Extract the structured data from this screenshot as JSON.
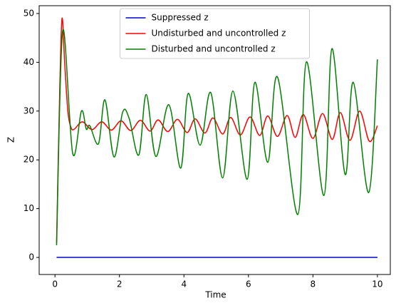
{
  "chart_data": {
    "type": "line",
    "xlabel": "Time",
    "ylabel": "Z",
    "xlim": [
      -0.49,
      10.4
    ],
    "ylim": [
      -3.5,
      51.6
    ],
    "xticks": [
      0,
      2,
      4,
      6,
      8,
      10
    ],
    "yticks": [
      0,
      10,
      20,
      30,
      40,
      50
    ],
    "legend": "upper center",
    "series": [
      {
        "name": "Suppressed z",
        "color": "#0000cc",
        "x": [
          0.05,
          10
        ],
        "values": [
          0,
          0
        ]
      },
      {
        "name": "Undisturbed and uncontrolled z",
        "color": "#ff0000",
        "x": [
          0.05,
          0.15,
          0.22,
          0.3,
          0.4,
          0.5,
          0.6,
          0.85,
          1.15,
          1.45,
          1.75,
          2.05,
          2.35,
          2.65,
          2.95,
          3.2,
          3.5,
          3.8,
          4.1,
          4.35,
          4.65,
          4.9,
          5.2,
          5.45,
          5.75,
          6.05,
          6.35,
          6.6,
          6.9,
          7.2,
          7.45,
          7.7,
          8.0,
          8.3,
          8.6,
          8.85,
          9.15,
          9.45,
          9.75,
          10
        ],
        "values": [
          3,
          35,
          49,
          40,
          30,
          26.6,
          26.3,
          27.8,
          26.2,
          27.8,
          26.1,
          28,
          26,
          28.1,
          25.9,
          28.2,
          25.8,
          28.3,
          25.6,
          28.4,
          25.5,
          28.6,
          25.3,
          28.7,
          25.1,
          28.8,
          25,
          29,
          24.8,
          29.1,
          24.6,
          29.3,
          24.4,
          29.5,
          24.2,
          29.7,
          24,
          30,
          23.8,
          27
        ]
      },
      {
        "name": "Disturbed and uncontrolled z",
        "color": "#008000",
        "x": [
          0.05,
          0.24,
          0.55,
          0.82,
          0.97,
          1.08,
          1.35,
          1.55,
          1.83,
          2.1,
          2.3,
          2.6,
          2.83,
          3.13,
          3.53,
          3.9,
          4.13,
          4.5,
          4.83,
          5.2,
          5.52,
          5.96,
          6.2,
          6.6,
          6.9,
          7.53,
          7.8,
          8.34,
          8.59,
          9.0,
          9.25,
          9.73,
          10
        ],
        "values": [
          2.5,
          46.5,
          21.3,
          30,
          26.3,
          27,
          23.3,
          32.3,
          20.6,
          29.8,
          28.5,
          21,
          33.4,
          20.7,
          31.3,
          18.3,
          33.6,
          23,
          33.8,
          16.3,
          34.1,
          16,
          35.9,
          19.5,
          37,
          8.8,
          40.1,
          12.7,
          42.8,
          17,
          35.9,
          13.3,
          40.6
        ]
      }
    ]
  }
}
